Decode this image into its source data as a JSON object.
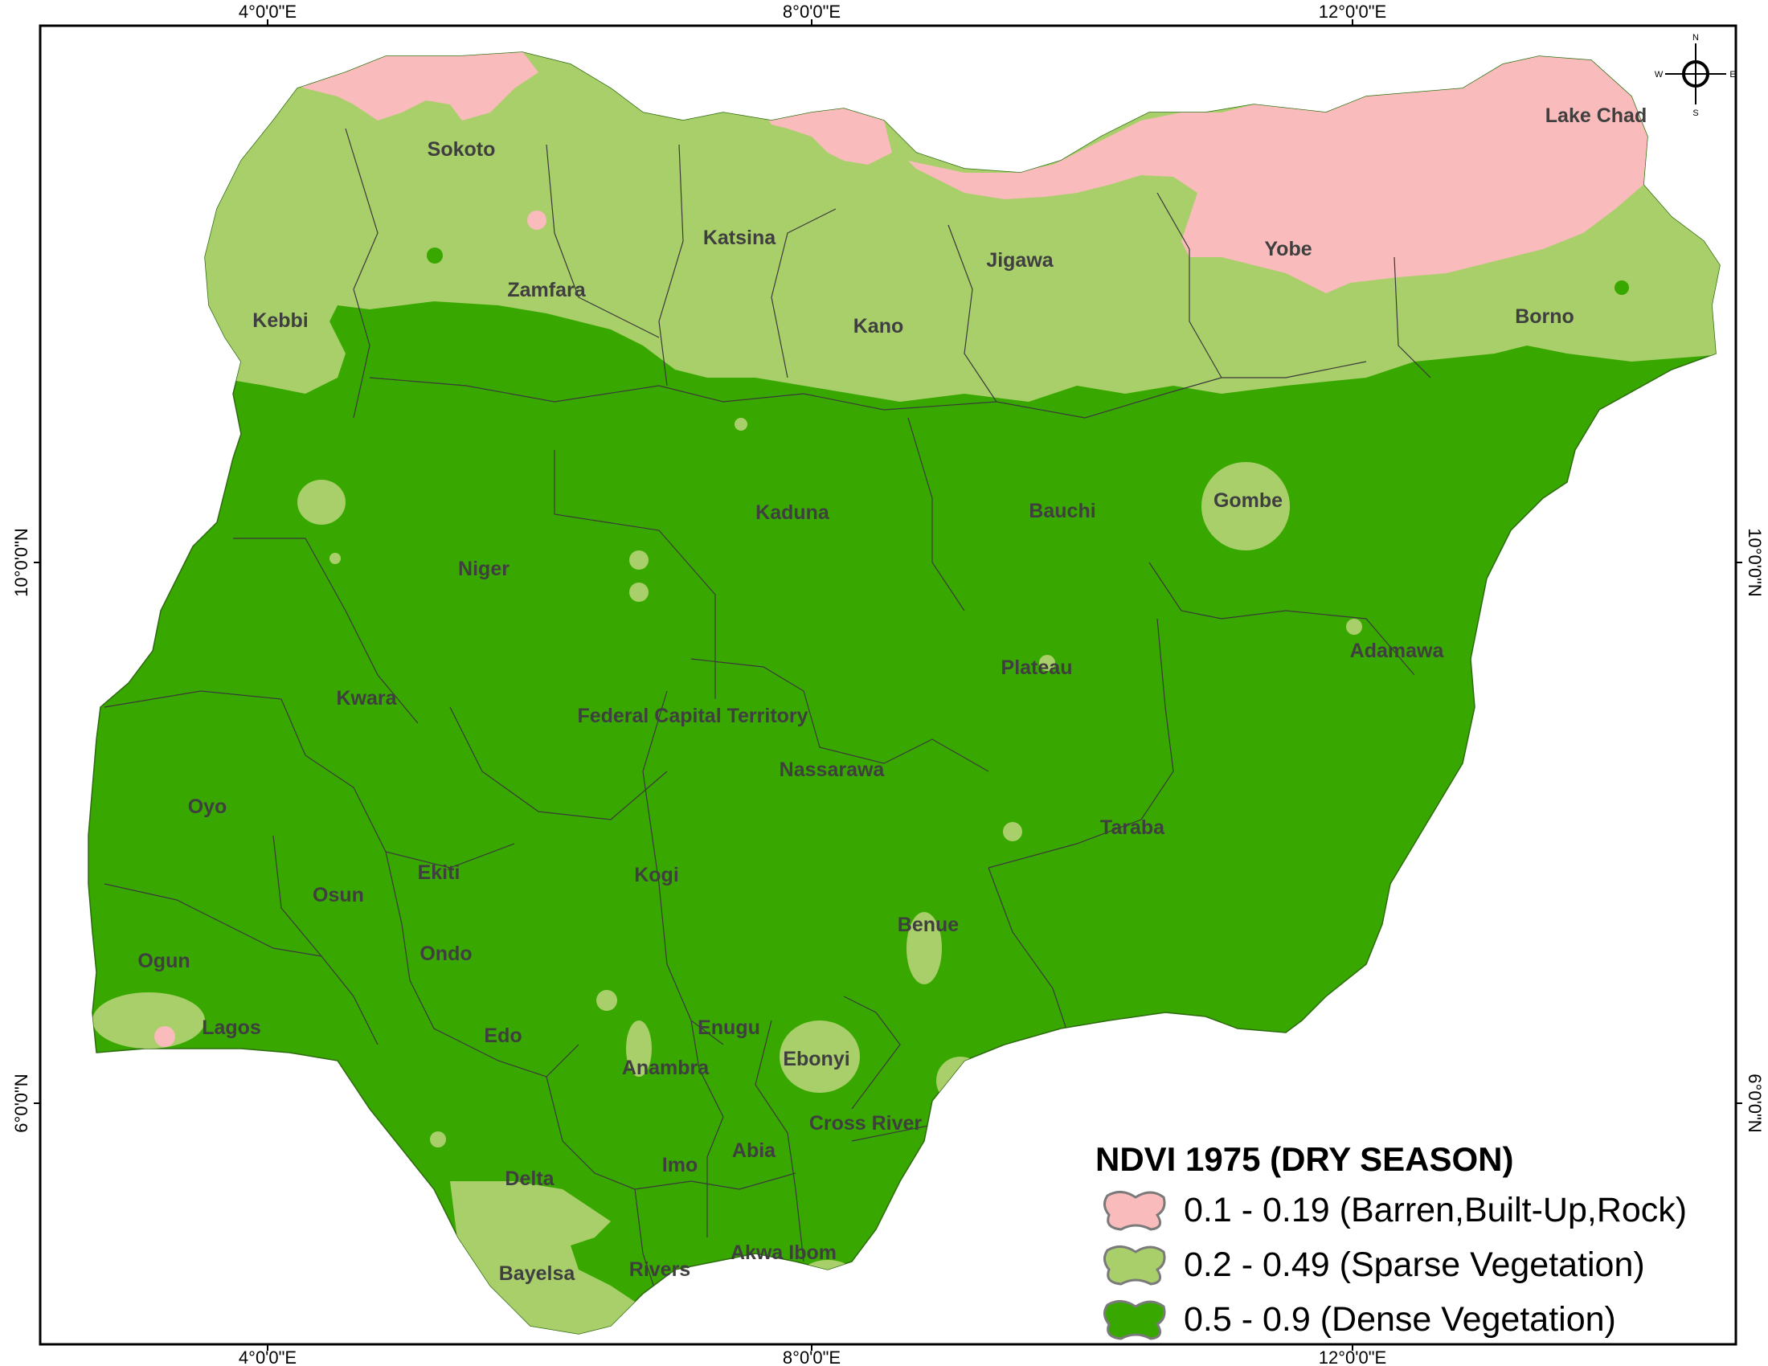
{
  "map": {
    "title": "NDVI 1975 (DRY SEASON)",
    "states": [
      {
        "name": "Sokoto"
      },
      {
        "name": "Katsina"
      },
      {
        "name": "Zamfara"
      },
      {
        "name": "Jigawa"
      },
      {
        "name": "Yobe"
      },
      {
        "name": "Lake Chad"
      },
      {
        "name": "Kebbi"
      },
      {
        "name": "Kano"
      },
      {
        "name": "Borno"
      },
      {
        "name": "Kaduna"
      },
      {
        "name": "Bauchi"
      },
      {
        "name": "Gombe"
      },
      {
        "name": "Niger"
      },
      {
        "name": "Adamawa"
      },
      {
        "name": "Plateau"
      },
      {
        "name": "Kwara"
      },
      {
        "name": "Federal Capital Territory"
      },
      {
        "name": "Nassarawa"
      },
      {
        "name": "Oyo"
      },
      {
        "name": "Taraba"
      },
      {
        "name": "Ekiti"
      },
      {
        "name": "Osun"
      },
      {
        "name": "Kogi"
      },
      {
        "name": "Benue"
      },
      {
        "name": "Ondo"
      },
      {
        "name": "Ogun"
      },
      {
        "name": "Lagos"
      },
      {
        "name": "Enugu"
      },
      {
        "name": "Edo"
      },
      {
        "name": "Ebonyi"
      },
      {
        "name": "Anambra"
      },
      {
        "name": "Cross River"
      },
      {
        "name": "Imo"
      },
      {
        "name": "Abia"
      },
      {
        "name": "Delta"
      },
      {
        "name": "Akwa Ibom"
      },
      {
        "name": "Rivers"
      },
      {
        "name": "Bayelsa"
      }
    ],
    "grid_labels": {
      "longitudes": [
        "4°0'0\"E",
        "8°0'0\"E",
        "12°0'0\"E"
      ],
      "latitudes": [
        "10°0'0\"N",
        "6°0'0\"N"
      ]
    },
    "legend": [
      {
        "label": "0.1 - 0.19 (Barren,Built-Up,Rock)",
        "color": "#f9bbbb"
      },
      {
        "label": "0.2 - 0.49 (Sparse Vegetation)",
        "color": "#a9cf6a"
      },
      {
        "label": "0.5 - 0.9 (Dense Vegetation)",
        "color": "#38a800"
      }
    ],
    "compass": {
      "n": "N",
      "s": "S",
      "e": "E",
      "w": "W"
    },
    "colors": {
      "barren": "#f9bbbb",
      "sparse": "#a9cf6a",
      "dense": "#38a800",
      "frame": "#000000"
    }
  }
}
